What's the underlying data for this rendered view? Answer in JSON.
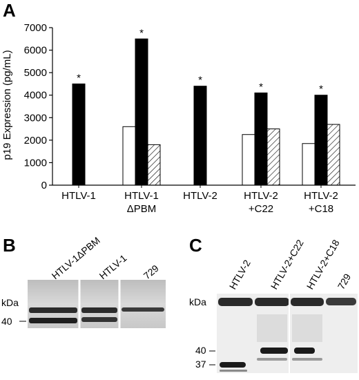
{
  "panels": {
    "a": "A",
    "b": "B",
    "c": "C"
  },
  "chart_data": {
    "type": "bar",
    "ylabel": "p19 Expression (pg/mL)",
    "ylim": [
      0,
      7000
    ],
    "yticks": [
      "0",
      "1000",
      "2000",
      "3000",
      "4000",
      "5000",
      "6000",
      "7000"
    ],
    "categories": [
      {
        "line1": "HTLV-1",
        "line2": ""
      },
      {
        "line1": "HTLV-1",
        "line2": "ΔPBM"
      },
      {
        "line1": "HTLV-2",
        "line2": ""
      },
      {
        "line1": "HTLV-2",
        "line2": "+C22"
      },
      {
        "line1": "HTLV-2",
        "line2": "+C18"
      }
    ],
    "series": [
      {
        "fill": "open",
        "values": [
          null,
          2600,
          null,
          2250,
          1850
        ]
      },
      {
        "fill": "solid",
        "values": [
          4500,
          6500,
          4400,
          4100,
          4000
        ]
      },
      {
        "fill": "hatched",
        "values": [
          null,
          1800,
          null,
          2500,
          2700
        ]
      }
    ],
    "significance": [
      "*",
      "*",
      "*",
      "*",
      "*"
    ],
    "colors": {
      "solid": "#000000",
      "open": "#ffffff",
      "stroke": "#000000"
    }
  },
  "blot_b": {
    "lanes": [
      "HTLV-1ΔPBM",
      "HTLV-1",
      "729"
    ],
    "unit": "kDa",
    "marker": "40"
  },
  "blot_c": {
    "lanes": [
      "HTLV-2",
      "HTLV-2+C22",
      "HTLV-2+C18",
      "729"
    ],
    "unit": "kDa",
    "markers": [
      "40",
      "37"
    ]
  }
}
